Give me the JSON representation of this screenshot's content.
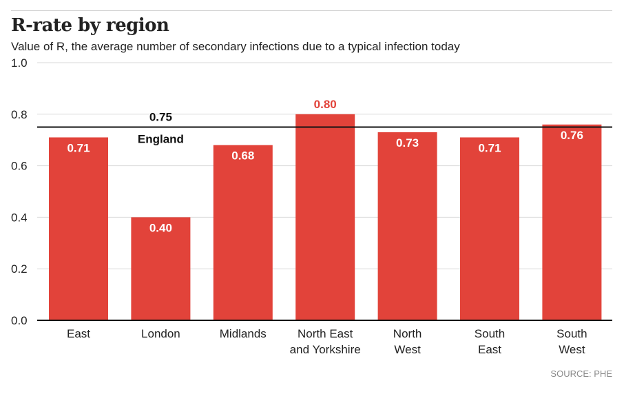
{
  "header": {
    "title": "R-rate by region",
    "subtitle": "Value of R, the average number of secondary infections due to a typical infection today"
  },
  "footer": {
    "source": "SOURCE: PHE"
  },
  "colors": {
    "bar": "#e2433a",
    "bar_label_inside": "#ffffff",
    "bar_label_outside": "#e2433a",
    "reference_line": "#111111",
    "grid": "#d9d9d9",
    "axis": "#111111"
  },
  "chart_data": {
    "type": "bar",
    "title": "R-rate by region",
    "subtitle": "Value of R, the average number of secondary infections due to a typical infection today",
    "xlabel": "",
    "ylabel": "",
    "ylim": [
      0,
      1.0
    ],
    "yticks": [
      "0.0",
      "0.2",
      "0.4",
      "0.6",
      "0.8",
      "1.0"
    ],
    "ytick_values": [
      0,
      0.2,
      0.4,
      0.6,
      0.8,
      1.0
    ],
    "grid": true,
    "categories": [
      [
        "East"
      ],
      [
        "London"
      ],
      [
        "Midlands"
      ],
      [
        "North East",
        "and Yorkshire"
      ],
      [
        "North",
        "West"
      ],
      [
        "South",
        "East"
      ],
      [
        "South",
        "West"
      ]
    ],
    "values": [
      0.71,
      0.4,
      0.68,
      0.8,
      0.73,
      0.71,
      0.76
    ],
    "data_labels": [
      "0.71",
      "0.40",
      "0.68",
      "0.80",
      "0.73",
      "0.71",
      "0.76"
    ],
    "reference_line": {
      "value": 0.75,
      "value_label": "0.75",
      "label": "England"
    }
  }
}
